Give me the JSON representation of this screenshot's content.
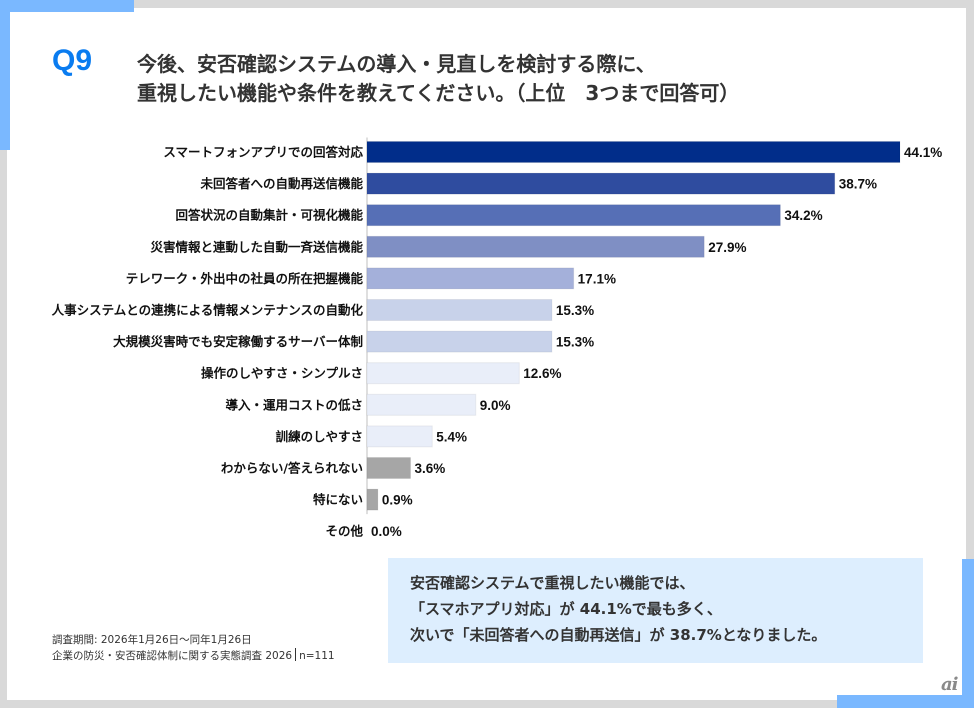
{
  "question": {
    "number": "Q9",
    "title_lines": [
      "今後、安否確認システムの導入・見直しを検討する際に、",
      "重視したい機能や条件を教えてください。（上位　3つまで回答可）"
    ]
  },
  "colors": {
    "accent": "#7ab8ff",
    "question_number": "#0a7cf0",
    "summary_bg": "#ddeefe"
  },
  "chart_data": {
    "type": "bar",
    "orientation": "horizontal",
    "title": "今後、安否確認システムの導入・見直しを検討する際に、重視したい機能や条件を教えてください。（上位　3つまで回答可）",
    "xlabel": "",
    "ylabel": "",
    "unit": "%",
    "xlim": [
      0,
      44.1
    ],
    "grid": false,
    "categories": [
      "スマートフォンアプリでの回答対応",
      "未回答者への自動再送信機能",
      "回答状況の自動集計・可視化機能",
      "災害情報と連動した自動一斉送信機能",
      "テレワーク・外出中の社員の所在把握機能",
      "人事システムとの連携による情報メンテナンスの自動化",
      "大規模災害時でも安定稼働するサーバー体制",
      "操作のしやすさ・シンプルさ",
      "導入・運用コストの低さ",
      "訓練のしやすさ",
      "わからない/答えられない",
      "特にない",
      "その他"
    ],
    "values": [
      44.1,
      38.7,
      34.2,
      27.9,
      17.1,
      15.3,
      15.3,
      12.6,
      9.0,
      5.4,
      3.6,
      0.9,
      0.0
    ],
    "value_labels": [
      "44.1%",
      "38.7%",
      "34.2%",
      "27.9%",
      "17.1%",
      "15.3%",
      "15.3%",
      "12.6%",
      "9.0%",
      "5.4%",
      "3.6%",
      "0.9%",
      "0.0%"
    ],
    "bar_colors": [
      "#012d8a",
      "#2f4c9f",
      "#566fb6",
      "#7f8fc4",
      "#a4b0da",
      "#c8d2ea",
      "#c8d2ea",
      "#e9eef9",
      "#e9eef9",
      "#e9eef9",
      "#a6a6a6",
      "#a6a6a6",
      "#a6a6a6"
    ]
  },
  "summary": {
    "lines": [
      "安否確認システムで重視したい機能では、",
      "「スマホアプリ対応」が 44.1%で最も多く、",
      "次いで「未回答者への自動再送信」が 38.7%となりました。"
    ]
  },
  "footer": {
    "period": "調査期間: 2026年1月26日～同年1月26日",
    "survey": "企業の防災・安否確認体制に関する実態調査 2026",
    "sample": "n=111"
  },
  "logo": {
    "text": "ai"
  }
}
